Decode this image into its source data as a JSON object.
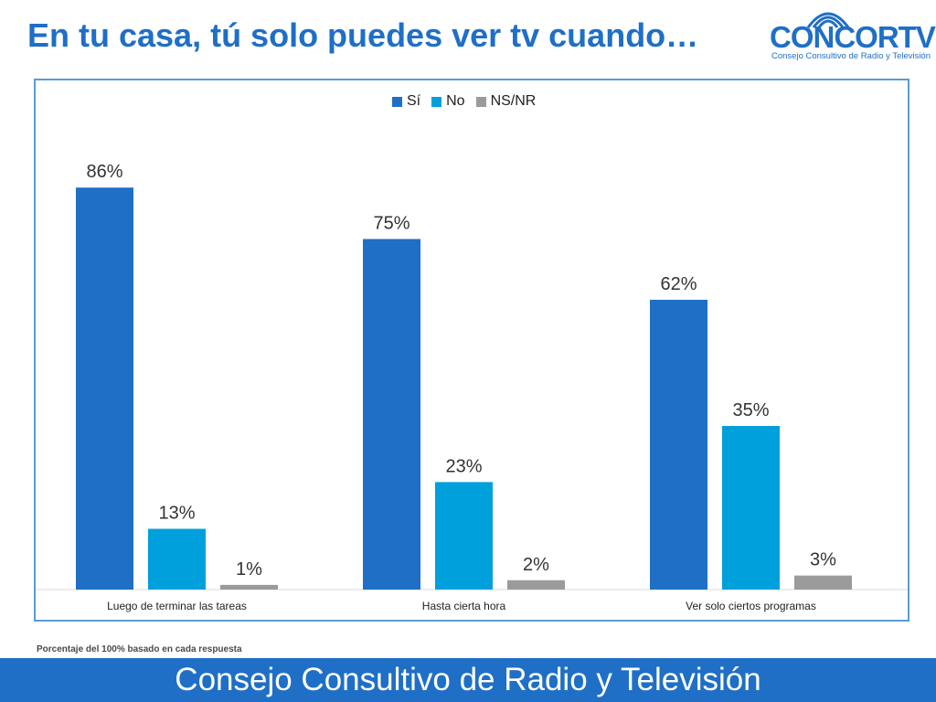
{
  "header": {
    "title": "En tu casa, tú solo puedes ver tv cuando…"
  },
  "logo": {
    "name": "CONCORTV",
    "subtitle": "Consejo Consultivo de Radio y Televisión",
    "icon": "signal-waves-icon",
    "color": "#1f6fc6"
  },
  "chart_data": {
    "type": "bar",
    "categories": [
      "Luego de terminar las tareas",
      "Hasta cierta hora",
      "Ver solo ciertos programas"
    ],
    "series": [
      {
        "name": "Sí",
        "values": [
          86,
          75,
          62
        ],
        "labels": [
          "86%",
          "75%",
          "62%"
        ],
        "color": "#1f6fc6"
      },
      {
        "name": "No",
        "values": [
          13,
          23,
          35
        ],
        "labels": [
          "13%",
          "23%",
          "35%"
        ],
        "color": "#00a0dc"
      },
      {
        "name": "NS/NR",
        "values": [
          1,
          2,
          3
        ],
        "labels": [
          "1%",
          "2%",
          "3%"
        ],
        "color": "#9b9b9b"
      }
    ],
    "ylim": [
      0,
      100
    ],
    "grid": false,
    "legend": "top-center",
    "xlabel": "",
    "ylabel": ""
  },
  "footnote": "Porcentaje del 100% basado en cada respuesta",
  "footer": {
    "text": "Consejo Consultivo de Radio y Televisión",
    "color": "#1f6fc6"
  }
}
